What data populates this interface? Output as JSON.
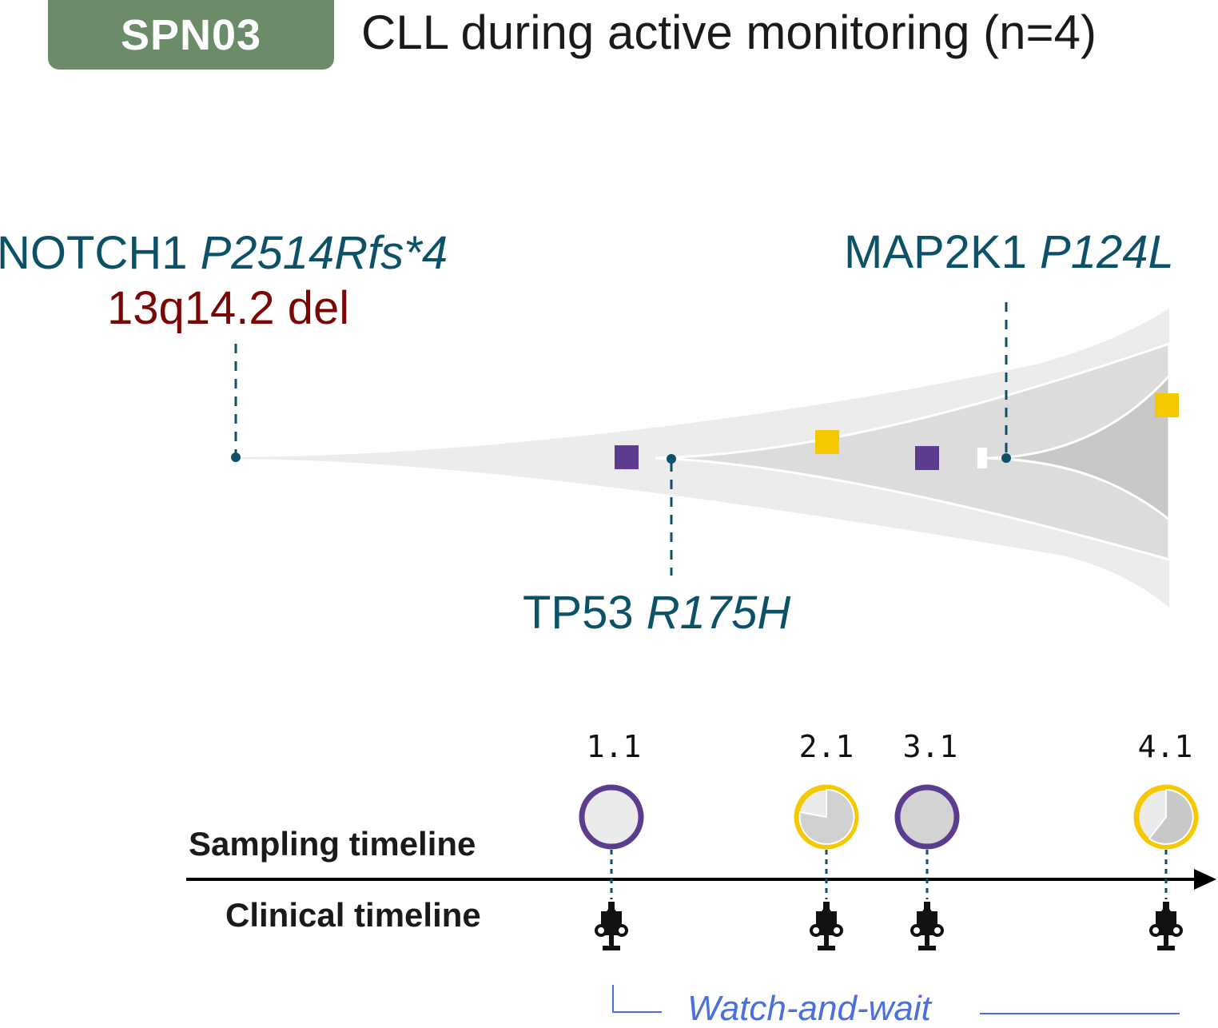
{
  "header": {
    "badge": "SPN03",
    "title": "CLL during active monitoring (n=4)"
  },
  "colors": {
    "badge": "#6c8c69",
    "mutation_label": "#0b5168",
    "cna_label": "#7a0606",
    "sample_1": "#5b3c8e",
    "sample_2": "#f5c800",
    "phase": "#4a6fe0",
    "fish_outer": "#ececec",
    "fish_mid": "#dddddd",
    "fish_inner": "#c8c8c6"
  },
  "events": {
    "notch1": {
      "gene": "NOTCH1",
      "variant": "P2514Rfs*4"
    },
    "del13q": {
      "label": "13q14.2 del"
    },
    "tp53": {
      "gene": "TP53",
      "variant": "R175H"
    },
    "map2k1": {
      "gene": "MAP2K1",
      "variant": "P124L"
    }
  },
  "timeline": {
    "sampling_label": "Sampling timeline",
    "clinical_label": "Clinical timeline",
    "samples": [
      {
        "id": "1.1",
        "ring": "purple",
        "filled_fraction": 0
      },
      {
        "id": "2.1",
        "ring": "yellow",
        "filled_fraction": 0.75
      },
      {
        "id": "3.1",
        "ring": "purple",
        "filled_fraction": 1.0
      },
      {
        "id": "4.1",
        "ring": "yellow",
        "filled_fraction": 0.6
      }
    ],
    "phase_label": "Watch-and-wait",
    "procedure_icon": "syringe-icon"
  }
}
